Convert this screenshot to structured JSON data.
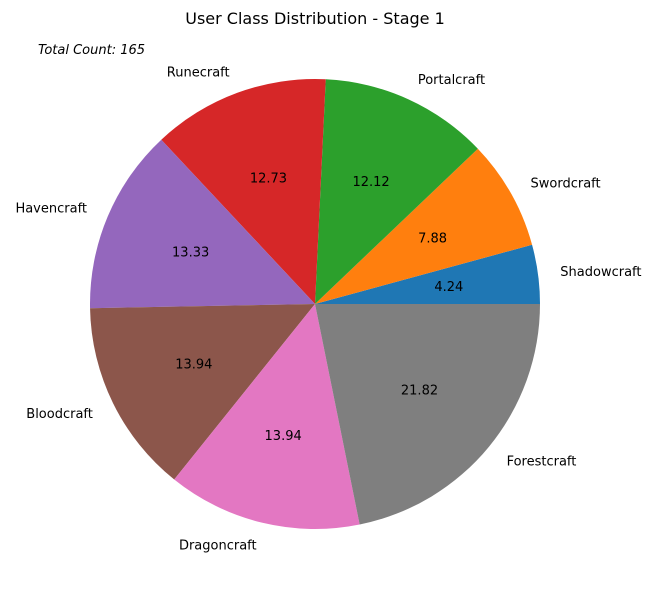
{
  "chart_data": {
    "type": "pie",
    "title": "User Class Distribution - Stage 1",
    "annotation": "Total Count: 165",
    "start_angle_deg": 0,
    "direction": "counterclockwise",
    "slices": [
      {
        "label": "Shadowcraft",
        "value": 4.24,
        "value_label": "4.24",
        "color": "#1f77b4"
      },
      {
        "label": "Swordcraft",
        "value": 7.88,
        "value_label": "7.88",
        "color": "#ff7f0e"
      },
      {
        "label": "Portalcraft",
        "value": 12.12,
        "value_label": "12.12",
        "color": "#2ca02c"
      },
      {
        "label": "Runecraft",
        "value": 12.73,
        "value_label": "12.73",
        "color": "#d62728"
      },
      {
        "label": "Havencraft",
        "value": 13.33,
        "value_label": "13.33",
        "color": "#9467bd"
      },
      {
        "label": "Bloodcraft",
        "value": 13.94,
        "value_label": "13.94",
        "color": "#8c564b"
      },
      {
        "label": "Dragoncraft",
        "value": 13.94,
        "value_label": "13.94",
        "color": "#e377c2"
      },
      {
        "label": "Forestcraft",
        "value": 21.82,
        "value_label": "21.82",
        "color": "#7f7f7f"
      }
    ]
  }
}
